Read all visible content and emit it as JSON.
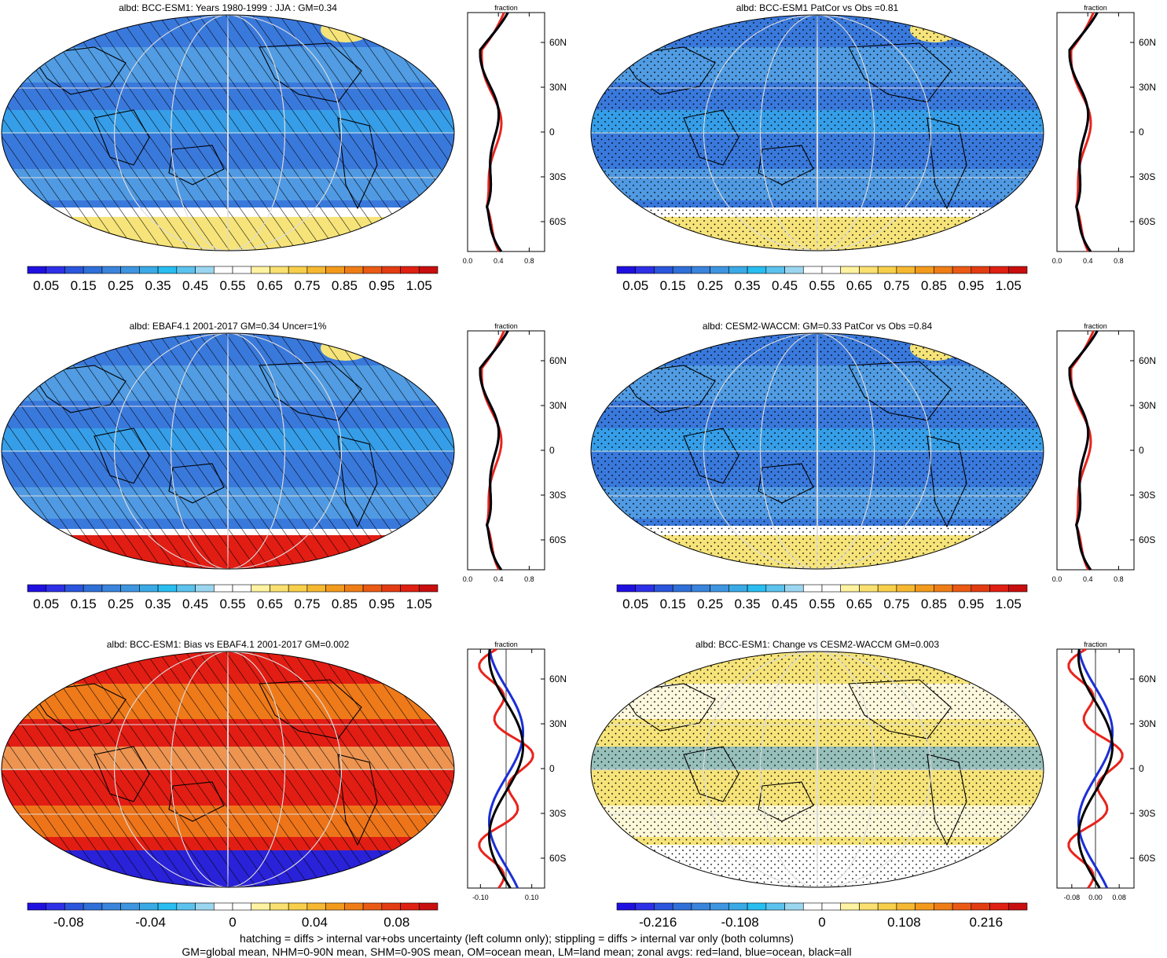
{
  "colors": {
    "blue_dark": "#2a22d8",
    "blue_mid": "#3a79dc",
    "blue_light": "#5aa8e6",
    "cyan": "#33b8f0",
    "white": "#ffffff",
    "yellow": "#f6e47a",
    "orange": "#f39a1c",
    "red": "#e21d14",
    "land_line": "#e8231b",
    "ocean_line": "#1b2ed6",
    "all_line": "#000000"
  },
  "scales": {
    "albedo": {
      "colors": [
        "#2010e0",
        "#2d30e6",
        "#2a55dc",
        "#2f6fd8",
        "#3a84dc",
        "#3e95e0",
        "#3aaae6",
        "#29bdf0",
        "#5cc2ee",
        "#9bd6f0",
        "#ffffff",
        "#ffffff",
        "#fff2a0",
        "#f9e070",
        "#f7cf4a",
        "#f5b830",
        "#f39a1c",
        "#ef7d16",
        "#ea5a14",
        "#e33c12",
        "#df2012",
        "#c80e0e"
      ],
      "labels": [
        "0.05",
        "0.15",
        "0.25",
        "0.35",
        "0.45",
        "0.55",
        "0.65",
        "0.75",
        "0.85",
        "0.95",
        "1.05"
      ]
    },
    "bias": {
      "colors": [
        "#2010e0",
        "#2d30e6",
        "#2a55dc",
        "#2f6fd8",
        "#3a84dc",
        "#3e95e0",
        "#3aaae6",
        "#29bdf0",
        "#5cc2ee",
        "#9bd6f0",
        "#ffffff",
        "#ffffff",
        "#fff2a0",
        "#f9e070",
        "#f7cf4a",
        "#f5b830",
        "#f39a1c",
        "#ef7d16",
        "#ea5a14",
        "#e33c12",
        "#df2012",
        "#c80e0e"
      ],
      "labels": [
        "-0.08",
        "-0.04",
        "0",
        "0.04",
        "0.08"
      ]
    },
    "change": {
      "colors": [
        "#2010e0",
        "#2d30e6",
        "#2a55dc",
        "#2f6fd8",
        "#3a84dc",
        "#3e95e0",
        "#3aaae6",
        "#29bdf0",
        "#5cc2ee",
        "#9bd6f0",
        "#ffffff",
        "#ffffff",
        "#fff2a0",
        "#f9e070",
        "#f7cf4a",
        "#f5b830",
        "#f39a1c",
        "#ef7d16",
        "#ea5a14",
        "#e33c12",
        "#df2012",
        "#c80e0e"
      ],
      "labels": [
        "-0.216",
        "-0.108",
        "0",
        "0.108",
        "0.216"
      ]
    }
  },
  "zonal_axis": {
    "title": "fraction",
    "lat_labels": [
      "60N",
      "30N",
      "0",
      "30S",
      "60S"
    ]
  },
  "panels": [
    {
      "title": "albd: BCC-ESM1: Years 1980-1999 : JJA : GM=0.34",
      "map_style": "model",
      "overlay": "hatch",
      "scale": "albedo",
      "zonal_ticks": [
        "0.0",
        "0.4",
        "0.8"
      ],
      "zonal_range": [
        0,
        1
      ],
      "zonal_zero": null
    },
    {
      "title": "albd: BCC-ESM1 PatCor vs Obs =0.81",
      "map_style": "model",
      "overlay": "stipple",
      "scale": "albedo",
      "zonal_ticks": [
        "0.0",
        "0.4",
        "0.8"
      ],
      "zonal_range": [
        0,
        1
      ],
      "zonal_zero": null
    },
    {
      "title": "albd: EBAF4.1 2001-2017 GM=0.34 Uncer=1%",
      "map_style": "obs",
      "overlay": "hatch",
      "scale": "albedo",
      "zonal_ticks": [
        "0.0",
        "0.4",
        "0.8"
      ],
      "zonal_range": [
        0,
        1
      ],
      "zonal_zero": null
    },
    {
      "title": "albd: CESM2-WACCM: GM=0.33 PatCor vs Obs =0.84",
      "map_style": "model",
      "overlay": "stipple",
      "scale": "albedo",
      "zonal_ticks": [
        "0.0",
        "0.4",
        "0.8"
      ],
      "zonal_range": [
        0,
        1
      ],
      "zonal_zero": null
    },
    {
      "title": "albd: BCC-ESM1: Bias vs EBAF4.1 2001-2017 GM=0.002",
      "map_style": "bias",
      "overlay": "hatch",
      "scale": "bias",
      "zonal_ticks": [
        "-0.10",
        "0.10"
      ],
      "zonal_range": [
        -0.15,
        0.15
      ],
      "zonal_zero": 0
    },
    {
      "title": "albd: BCC-ESM1: Change vs CESM2-WACCM GM=0.003",
      "map_style": "change",
      "overlay": "stipple",
      "scale": "change",
      "zonal_ticks": [
        "-0.08",
        "0.00",
        "0.08"
      ],
      "zonal_range": [
        -0.13,
        0.13
      ],
      "zonal_zero": 0
    }
  ],
  "footer": {
    "line1": "hatching = diffs > internal var+obs uncertainty (left column only); stippling = diffs > internal var only (both columns)",
    "line2": "GM=global mean, NHM=0-90N mean, SHM=0-90S mean, OM=ocean mean, LM=land mean; zonal avgs: red=land, blue=ocean, black=all"
  }
}
